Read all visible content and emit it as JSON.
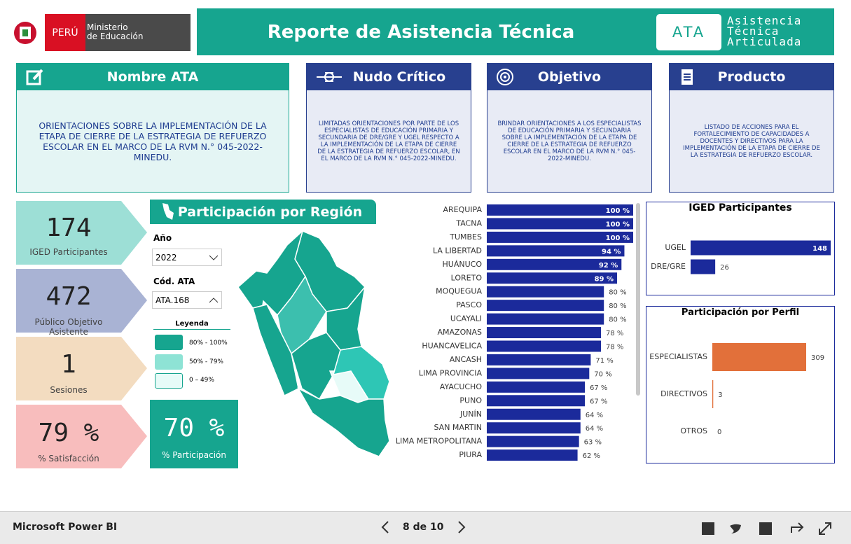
{
  "header": {
    "country": "PERÚ",
    "ministry": [
      "Ministerio",
      "de Educación"
    ],
    "title": "Reporte de Asistencia Técnica",
    "logo_abbr": "ATA",
    "logo_text": [
      "Asistencia",
      "Técnica",
      "Articulada"
    ]
  },
  "cards": [
    {
      "title": "Nombre ATA",
      "body": "ORIENTACIONES SOBRE LA IMPLEMENTACIÓN DE LA ETAPA DE CIERRE DE LA ESTRATEGIA DE REFUERZO ESCOLAR EN EL MARCO DE LA RVM N.° 045-2022-MINEDU."
    },
    {
      "title": "Nudo Crítico",
      "body": "LIMITADAS ORIENTACIONES POR PARTE DE LOS ESPECIALISTAS DE EDUCACIÓN PRIMARIA Y SECUNDARIA DE DRE/GRE Y UGEL RESPECTO A LA IMPLEMENTACIÓN DE LA ETAPA DE CIERRE DE LA ESTRATEGIA DE REFUERZO ESCOLAR, EN EL MARCO DE LA RVM N.° 045-2022-MINEDU."
    },
    {
      "title": "Objetivo",
      "body": "BRINDAR ORIENTACIONES A LOS ESPECIALISTAS DE EDUCACIÓN PRIMARIA Y SECUNDARIA SOBRE LA IMPLEMENTACIÓN DE LA ETAPA DE CIERRE DE LA ESTRATEGIA DE REFUERZO ESCOLAR EN EL MARCO DE LA RVM N.° 045-2022-MINEDU."
    },
    {
      "title": "Producto",
      "body": "LISTADO DE ACCIONES PARA EL FORTALECIMIENTO DE CAPACIDADES A DOCENTES Y DIRECTIVOS PARA LA IMPLEMENTACIÓN DE LA ETAPA DE CIERRE DE LA ESTRATEGIA DE REFUERZO ESCOLAR."
    }
  ],
  "kpis": [
    {
      "value": 174,
      "label": "IGED Participantes"
    },
    {
      "value": 472,
      "label": "Público Objetivo Asistente"
    },
    {
      "value": 1,
      "label": "Sesiones"
    },
    {
      "value": 79,
      "value_label": "79 %",
      "label": "% Satisfacción"
    }
  ],
  "participation": {
    "title": "Participación por Región",
    "filters": [
      {
        "label": "Año",
        "value": "2022"
      },
      {
        "label": "Cód. ATA",
        "value": "ATA.168"
      }
    ],
    "legend": {
      "title": "Leyenda",
      "items": [
        "80% - 100%",
        "50% - 79%",
        "0 – 49%"
      ]
    },
    "kpi": {
      "value": 70,
      "value_label": "70 %",
      "label": "% Participación"
    }
  },
  "region_chart": {
    "type": "bar",
    "orientation": "horizontal",
    "color": "#1b2a9b",
    "xlim": [
      0,
      100
    ],
    "categories": [
      "AREQUIPA",
      "TACNA",
      "TUMBES",
      "LA LIBERTAD",
      "HUÁNUCO",
      "LORETO",
      "MOQUEGUA",
      "PASCO",
      "UCAYALI",
      "AMAZONAS",
      "HUANCAVELICA",
      "ANCASH",
      "LIMA PROVINCIA",
      "AYACUCHO",
      "PUNO",
      "JUNÍN",
      "SAN MARTIN",
      "LIMA METROPOLITANA",
      "PIURA"
    ],
    "values": [
      100,
      100,
      100,
      94,
      92,
      89,
      80,
      80,
      80,
      78,
      78,
      71,
      70,
      67,
      67,
      64,
      64,
      63,
      62
    ],
    "value_labels": [
      "100 %",
      "100 %",
      "100 %",
      "94 %",
      "92 %",
      "89 %",
      "80 %",
      "80 %",
      "80 %",
      "78 %",
      "78 %",
      "71 %",
      "70 %",
      "67 %",
      "67 %",
      "64 %",
      "64 %",
      "63 %",
      "62 %"
    ]
  },
  "iged_chart": {
    "type": "bar",
    "title": "IGED Participantes",
    "color": "#1b2a9b",
    "xlim": [
      0,
      148
    ],
    "categories": [
      "UGEL",
      "DRE/GRE"
    ],
    "values": [
      148,
      26
    ]
  },
  "profile_chart": {
    "type": "bar",
    "title": "Participación por Perfil",
    "color": "#e2703a",
    "xlim": [
      0,
      309
    ],
    "categories": [
      "ESPECIALISTAS",
      "DIRECTIVOS",
      "OTROS"
    ],
    "values": [
      309,
      3,
      0
    ]
  },
  "footer": {
    "brand": "Microsoft Power BI",
    "page": "8 de 10"
  }
}
